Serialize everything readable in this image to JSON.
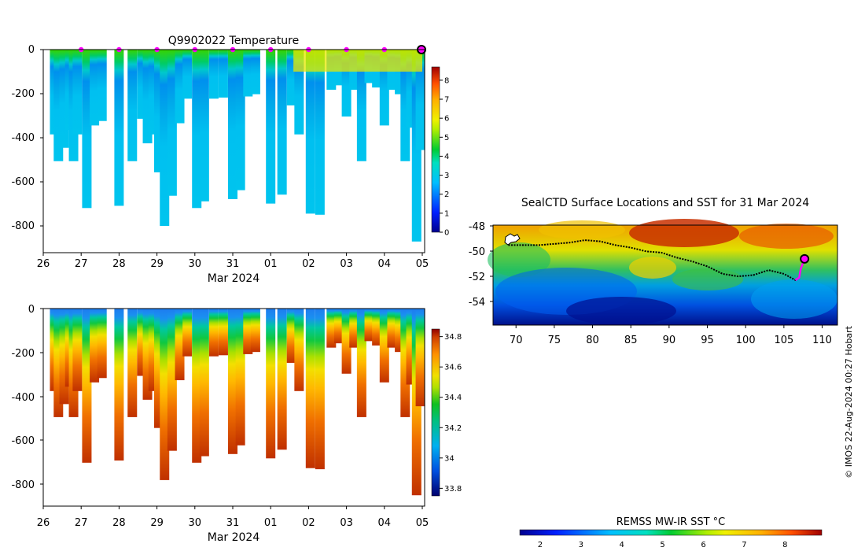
{
  "chart_data": [
    {
      "type": "heatmap",
      "title": "Q9902022  Temperature",
      "xlabel": "Mar 2024",
      "x_tick_labels": [
        "26",
        "27",
        "28",
        "29",
        "30",
        "31",
        "01",
        "02",
        "03",
        "04",
        "05"
      ],
      "y_tick_labels": [
        "0",
        "-200",
        "-400",
        "-600",
        "-800"
      ],
      "ylim": [
        -910,
        0
      ],
      "colorbar_ticks": [
        "0",
        "1",
        "2",
        "3",
        "4",
        "5",
        "6",
        "7",
        "8"
      ],
      "colorbar_range": [
        0,
        8.7
      ],
      "marker_color": "#ff00ff",
      "surface_marker_days": [
        1,
        2,
        3,
        4,
        5,
        6,
        7,
        8,
        9,
        10
      ],
      "profiles": [
        {
          "day": 0.3,
          "depth": 380
        },
        {
          "day": 0.4,
          "depth": 500
        },
        {
          "day": 0.55,
          "depth": 440
        },
        {
          "day": 0.7,
          "depth": 360
        },
        {
          "day": 0.8,
          "depth": 500
        },
        {
          "day": 0.9,
          "depth": 380
        },
        {
          "day": 1.15,
          "depth": 710
        },
        {
          "day": 1.35,
          "depth": 340
        },
        {
          "day": 1.55,
          "depth": 320
        },
        {
          "day": 2.0,
          "depth": 700
        },
        {
          "day": 2.35,
          "depth": 500
        },
        {
          "day": 2.6,
          "depth": 310
        },
        {
          "day": 2.75,
          "depth": 420
        },
        {
          "day": 2.9,
          "depth": 380
        },
        {
          "day": 3.05,
          "depth": 550
        },
        {
          "day": 3.2,
          "depth": 790
        },
        {
          "day": 3.4,
          "depth": 655
        },
        {
          "day": 3.6,
          "depth": 330
        },
        {
          "day": 3.8,
          "depth": 220
        },
        {
          "day": 4.05,
          "depth": 710
        },
        {
          "day": 4.25,
          "depth": 680
        },
        {
          "day": 4.5,
          "depth": 220
        },
        {
          "day": 4.75,
          "depth": 215
        },
        {
          "day": 5.0,
          "depth": 670
        },
        {
          "day": 5.2,
          "depth": 630
        },
        {
          "day": 5.4,
          "depth": 210
        },
        {
          "day": 5.6,
          "depth": 200
        },
        {
          "day": 6.0,
          "depth": 690
        },
        {
          "day": 6.3,
          "depth": 650
        },
        {
          "day": 6.55,
          "depth": 250
        },
        {
          "day": 6.75,
          "depth": 380
        },
        {
          "day": 7.05,
          "depth": 735
        },
        {
          "day": 7.3,
          "depth": 740
        },
        {
          "day": 7.6,
          "depth": 180
        },
        {
          "day": 7.8,
          "depth": 160
        },
        {
          "day": 8.0,
          "depth": 300
        },
        {
          "day": 8.2,
          "depth": 180
        },
        {
          "day": 8.4,
          "depth": 500
        },
        {
          "day": 8.6,
          "depth": 150
        },
        {
          "day": 8.8,
          "depth": 170
        },
        {
          "day": 9.0,
          "depth": 340
        },
        {
          "day": 9.2,
          "depth": 180
        },
        {
          "day": 9.4,
          "depth": 200
        },
        {
          "day": 9.55,
          "depth": 500
        },
        {
          "day": 9.7,
          "depth": 350
        },
        {
          "day": 9.85,
          "depth": 860
        },
        {
          "day": 9.95,
          "depth": 450
        }
      ]
    },
    {
      "type": "heatmap",
      "title": "",
      "xlabel": "Mar 2024",
      "x_tick_labels": [
        "26",
        "27",
        "28",
        "29",
        "30",
        "31",
        "01",
        "02",
        "03",
        "04",
        "05"
      ],
      "y_tick_labels": [
        "0",
        "-200",
        "-400",
        "-600",
        "-800"
      ],
      "ylim": [
        -910,
        0
      ],
      "colorbar_ticks": [
        "33.8",
        "34",
        "34.2",
        "34.4",
        "34.6",
        "34.8"
      ],
      "colorbar_range": [
        33.75,
        34.85
      ]
    },
    {
      "type": "heatmap",
      "title": "SealCTD Surface Locations and SST for 31 Mar 2024",
      "x_tick_labels": [
        "70",
        "75",
        "80",
        "85",
        "90",
        "95",
        "100",
        "105",
        "110"
      ],
      "y_tick_labels": [
        "-48",
        "-50",
        "-52",
        "-54"
      ],
      "xlim": [
        67,
        112
      ],
      "ylim": [
        -56,
        -48
      ],
      "colorbar_label": "REMSS MW-IR SST °C",
      "colorbar_ticks": [
        "2",
        "3",
        "4",
        "5",
        "6",
        "7",
        "8"
      ],
      "colorbar_range": [
        1.5,
        8.9
      ],
      "track_color": "#000000",
      "recent_track_color": "#ff00ff",
      "track": [
        [
          69,
          -49.6
        ],
        [
          71,
          -49.6
        ],
        [
          73,
          -49.6
        ],
        [
          75,
          -49.5
        ],
        [
          77,
          -49.4
        ],
        [
          79,
          -49.2
        ],
        [
          81,
          -49.3
        ],
        [
          83,
          -49.6
        ],
        [
          85,
          -49.8
        ],
        [
          87,
          -50.1
        ],
        [
          89,
          -50.2
        ],
        [
          91,
          -50.6
        ],
        [
          93,
          -50.9
        ],
        [
          95,
          -51.3
        ],
        [
          97,
          -51.9
        ],
        [
          99,
          -52.1
        ],
        [
          101,
          -52.0
        ],
        [
          103,
          -51.6
        ],
        [
          105,
          -51.9
        ],
        [
          106.5,
          -52.4
        ],
        [
          107,
          -52.2
        ],
        [
          107.2,
          -51.5
        ],
        [
          107.7,
          -50.7
        ]
      ],
      "credit": "© IMOS 22-Aug-2024 00:27 Hobart"
    }
  ]
}
